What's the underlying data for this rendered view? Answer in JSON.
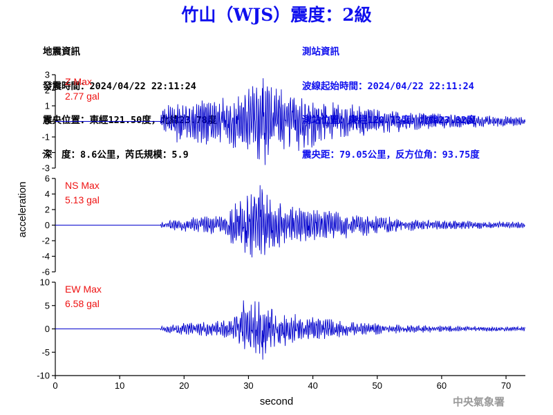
{
  "colors": {
    "title": "#1010ee",
    "trace": "#0000cc",
    "peak_label": "#ee1111",
    "left_info": "#000000",
    "right_info": "#1010ee",
    "agency": "#9a9a9a"
  },
  "title": "竹山（WJS）震度：2級",
  "earthquake_info": {
    "heading": "地震資訊",
    "time": "發震時間：2024/04/22 22:11:24",
    "location": "震央位置：東經121.50度，北緯23.78度",
    "depth_magnitude": "深　度：8.6公里，芮氏規模：5.9"
  },
  "station_info": {
    "heading": "測站資訊",
    "wave_start": "波線起始時間：2024/04/22 22:11:24",
    "location": "測站位置：東經120.73度，北緯23.82度",
    "distance_azimuth": "震央距：79.05公里，反方位角：93.75度"
  },
  "agency": "中央氣象署",
  "chart_data": [
    {
      "type": "line",
      "name": "Z",
      "peak_label": "Z Max",
      "peak_value": "2.77 gal",
      "ylim": [
        -3,
        3
      ],
      "yticks": [
        -3,
        -2,
        -1,
        0,
        1,
        2,
        3
      ],
      "xlim": [
        0,
        73
      ],
      "envelope": [
        [
          0,
          0
        ],
        [
          16.3,
          0
        ],
        [
          16.5,
          0.9
        ],
        [
          18,
          1.1
        ],
        [
          22,
          1.3
        ],
        [
          26,
          1.3
        ],
        [
          28,
          1.5
        ],
        [
          30,
          1.8
        ],
        [
          32,
          2.3
        ],
        [
          34,
          2.0
        ],
        [
          37,
          1.7
        ],
        [
          40,
          1.4
        ],
        [
          43,
          1.2
        ],
        [
          46,
          1.0
        ],
        [
          50,
          0.7
        ],
        [
          55,
          0.55
        ],
        [
          60,
          0.4
        ],
        [
          65,
          0.35
        ],
        [
          70,
          0.3
        ],
        [
          73,
          0.25
        ]
      ],
      "peak": {
        "x": 32.3,
        "y": 2.77
      },
      "trough": {
        "x": 32.6,
        "y": -2.8
      }
    },
    {
      "type": "line",
      "name": "NS",
      "peak_label": "NS Max",
      "peak_value": "5.13 gal",
      "ylim": [
        -6,
        6
      ],
      "yticks": [
        -6,
        -4,
        -2,
        0,
        2,
        4,
        6
      ],
      "xlim": [
        0,
        73
      ],
      "envelope": [
        [
          0,
          0
        ],
        [
          16.3,
          0
        ],
        [
          16.5,
          0.4
        ],
        [
          19,
          0.7
        ],
        [
          22,
          0.9
        ],
        [
          26,
          1.1
        ],
        [
          28,
          2.5
        ],
        [
          30,
          3.5
        ],
        [
          32,
          4.5
        ],
        [
          34,
          3.0
        ],
        [
          36,
          2.2
        ],
        [
          40,
          1.8
        ],
        [
          44,
          1.5
        ],
        [
          48,
          1.2
        ],
        [
          52,
          0.9
        ],
        [
          56,
          0.6
        ],
        [
          60,
          0.5
        ],
        [
          65,
          0.45
        ],
        [
          70,
          0.4
        ],
        [
          73,
          0.35
        ]
      ],
      "peak": {
        "x": 31.8,
        "y": 5.13
      },
      "trough": {
        "x": 30.3,
        "y": -3.8
      }
    },
    {
      "type": "line",
      "name": "EW",
      "peak_label": "EW Max",
      "peak_value": "6.58 gal",
      "ylim": [
        -10,
        10
      ],
      "yticks": [
        -10,
        -5,
        0,
        5,
        10
      ],
      "xlim": [
        0,
        73
      ],
      "envelope": [
        [
          0,
          0
        ],
        [
          16.3,
          0
        ],
        [
          16.5,
          0.6
        ],
        [
          19,
          1.0
        ],
        [
          22,
          1.2
        ],
        [
          26,
          1.5
        ],
        [
          28,
          3.0
        ],
        [
          30,
          4.5
        ],
        [
          32,
          5.5
        ],
        [
          34,
          4.0
        ],
        [
          36,
          3.0
        ],
        [
          40,
          2.2
        ],
        [
          44,
          1.6
        ],
        [
          48,
          1.2
        ],
        [
          52,
          0.9
        ],
        [
          56,
          0.7
        ],
        [
          60,
          0.6
        ],
        [
          65,
          0.5
        ],
        [
          70,
          0.45
        ],
        [
          73,
          0.4
        ]
      ],
      "peak": {
        "x": 29.2,
        "y": 6.1
      },
      "trough": {
        "x": 32.2,
        "y": -6.58
      }
    }
  ],
  "x_axis": {
    "label": "second",
    "ticks": [
      0,
      10,
      20,
      30,
      40,
      50,
      60,
      70
    ]
  },
  "y_axis": {
    "label": "acceleration"
  }
}
